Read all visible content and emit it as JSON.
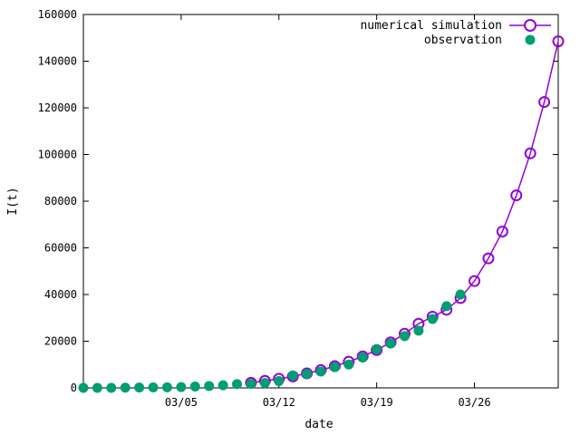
{
  "chart_data": {
    "type": "scatter",
    "xlabel": "date",
    "ylabel": "I(t)",
    "x_ticks": [
      "03/05",
      "03/12",
      "03/19",
      "03/26"
    ],
    "x_tick_dates": [
      "2020-03-05",
      "2020-03-12",
      "2020-03-19",
      "2020-03-26"
    ],
    "xlim": [
      "2020-02-27",
      "2020-04-01"
    ],
    "ylim": [
      0,
      160000
    ],
    "y_ticks": [
      0,
      20000,
      40000,
      60000,
      80000,
      100000,
      120000,
      140000,
      160000
    ],
    "grid": false,
    "legend_position": "top-right",
    "series": [
      {
        "name": "numerical simulation",
        "style": "line-open-circles",
        "color": "#9400d3",
        "x": [
          "2020-03-10",
          "2020-03-11",
          "2020-03-12",
          "2020-03-13",
          "2020-03-14",
          "2020-03-15",
          "2020-03-16",
          "2020-03-17",
          "2020-03-18",
          "2020-03-19",
          "2020-03-20",
          "2020-03-21",
          "2020-03-22",
          "2020-03-23",
          "2020-03-24",
          "2020-03-25",
          "2020-03-26",
          "2020-03-27",
          "2020-03-28",
          "2020-03-29",
          "2020-03-30",
          "2020-03-31",
          "2020-04-01"
        ],
        "y": [
          2200,
          3000,
          3900,
          4900,
          6200,
          7600,
          9300,
          11200,
          13500,
          16200,
          19500,
          23200,
          27500,
          30500,
          33500,
          38500,
          45800,
          55500,
          67000,
          82500,
          100500,
          122500,
          148500
        ]
      },
      {
        "name": "observation",
        "style": "filled-circles",
        "color": "#009e73",
        "x": [
          "2020-02-27",
          "2020-02-28",
          "2020-02-29",
          "2020-03-01",
          "2020-03-02",
          "2020-03-03",
          "2020-03-04",
          "2020-03-05",
          "2020-03-06",
          "2020-03-07",
          "2020-03-08",
          "2020-03-09",
          "2020-03-10",
          "2020-03-11",
          "2020-03-12",
          "2020-03-13",
          "2020-03-14",
          "2020-03-15",
          "2020-03-16",
          "2020-03-17",
          "2020-03-18",
          "2020-03-19",
          "2020-03-20",
          "2020-03-21",
          "2020-03-22",
          "2020-03-23",
          "2020-03-24",
          "2020-03-25"
        ],
        "y": [
          0,
          0,
          0,
          100,
          150,
          200,
          250,
          350,
          600,
          800,
          1100,
          1600,
          1700,
          2100,
          2900,
          5300,
          6000,
          7000,
          8900,
          10000,
          13000,
          16500,
          19000,
          22200,
          24500,
          29500,
          35000,
          40000
        ]
      }
    ]
  }
}
